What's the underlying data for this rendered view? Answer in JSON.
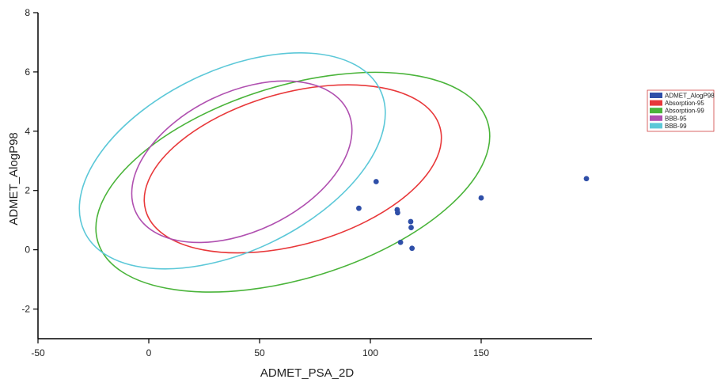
{
  "chart_data": {
    "type": "scatter",
    "xlabel": "ADMET_PSA_2D",
    "ylabel": "ADMET_AlogP98",
    "xlim": [
      -50,
      200
    ],
    "ylim": [
      -3,
      8
    ],
    "x_ticks": [
      -50,
      0,
      50,
      100,
      150
    ],
    "y_ticks": [
      -2,
      0,
      2,
      4,
      6,
      8
    ],
    "grid": false,
    "legend_position": "right",
    "series": [
      {
        "name": "ADMET_AlogP98",
        "kind": "points",
        "color": "#2f4fa8",
        "points": [
          {
            "x": 94.8,
            "y": 1.4
          },
          {
            "x": 102.6,
            "y": 2.3
          },
          {
            "x": 112.1,
            "y": 1.35
          },
          {
            "x": 112.3,
            "y": 1.25
          },
          {
            "x": 113.6,
            "y": 0.25
          },
          {
            "x": 118.2,
            "y": 0.95
          },
          {
            "x": 118.4,
            "y": 0.75
          },
          {
            "x": 118.8,
            "y": 0.05
          },
          {
            "x": 150.0,
            "y": 1.75
          },
          {
            "x": 197.5,
            "y": 2.4
          }
        ]
      },
      {
        "name": "Absorption-95",
        "kind": "ellipse",
        "color": "#e8383a",
        "center": [
          65.0,
          2.73
        ],
        "semi_axes": [
          69.0,
          2.56
        ],
        "tilt_deg": -15.8
      },
      {
        "name": "Absorption-99",
        "kind": "ellipse",
        "color": "#4ab43a",
        "center": [
          65.0,
          2.28
        ],
        "semi_axes": [
          92.0,
          3.25
        ],
        "tilt_deg": -17.1
      },
      {
        "name": "BBB-95",
        "kind": "ellipse",
        "color": "#b050b0",
        "center": [
          42.0,
          2.97
        ],
        "semi_axes": [
          53.0,
          2.35
        ],
        "tilt_deg": -25.6
      },
      {
        "name": "BBB-99",
        "kind": "ellipse",
        "color": "#5cc8d8",
        "center": [
          37.7,
          3.0
        ],
        "semi_axes": [
          74.0,
          3.05
        ],
        "tilt_deg": -25.6
      }
    ]
  }
}
